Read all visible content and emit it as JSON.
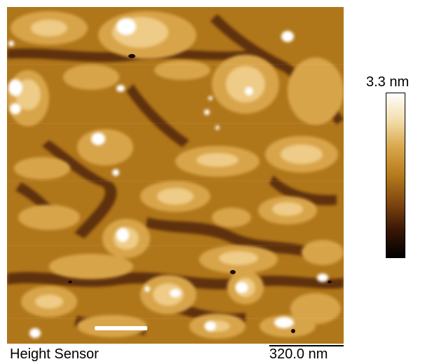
{
  "image": {
    "caption": "Height Sensor",
    "scale_bar_label": "320.0 nm",
    "colorbar_max_label": "3.3 nm",
    "colormap": [
      "#000000",
      "#3a1606",
      "#7e4610",
      "#b57a1c",
      "#d9a64a",
      "#f2dca8",
      "#ffffff"
    ]
  }
}
